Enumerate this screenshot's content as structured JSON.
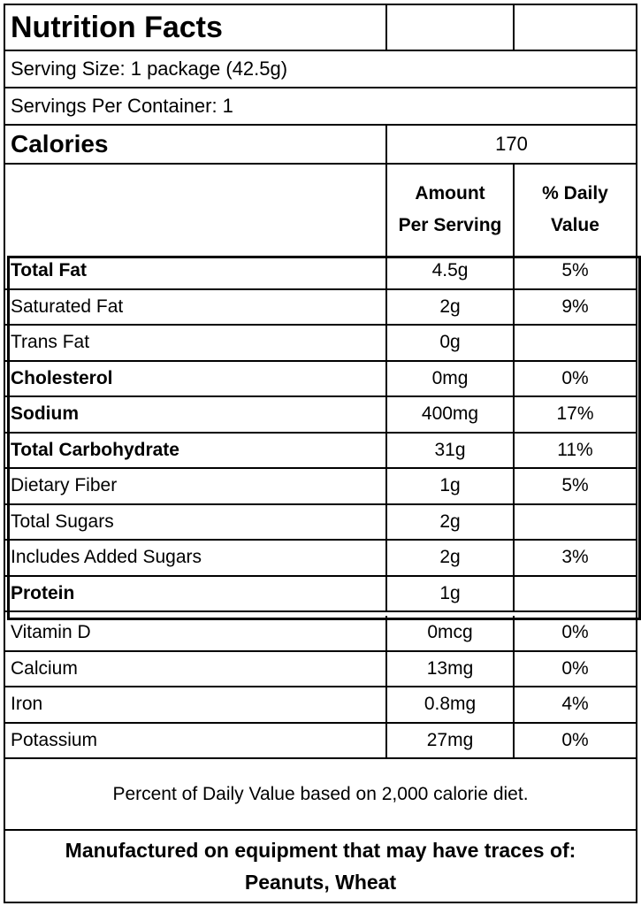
{
  "title": "Nutrition Facts",
  "serving_size": "Serving Size: 1 package (42.5g)",
  "servings_per_container": "Servings Per Container: 1",
  "calories": {
    "label": "Calories",
    "value": "170"
  },
  "columns": {
    "amount_line1": "Amount",
    "amount_line2": "Per Serving",
    "dv_line1": "% Daily",
    "dv_line2": "Value"
  },
  "nutrients": [
    {
      "name": "Total Fat",
      "amount": "4.5g",
      "dv": "5%",
      "bold": true
    },
    {
      "name": "Saturated Fat",
      "amount": "2g",
      "dv": "9%",
      "bold": false
    },
    {
      "name": "Trans Fat",
      "amount": "0g",
      "dv": "",
      "bold": false
    },
    {
      "name": "Cholesterol",
      "amount": "0mg",
      "dv": "0%",
      "bold": true
    },
    {
      "name": "Sodium",
      "amount": "400mg",
      "dv": "17%",
      "bold": true
    },
    {
      "name": "Total Carbohydrate",
      "amount": "31g",
      "dv": "11%",
      "bold": true
    },
    {
      "name": "Dietary Fiber",
      "amount": "1g",
      "dv": "5%",
      "bold": false
    },
    {
      "name": "Total Sugars",
      "amount": "2g",
      "dv": "",
      "bold": false
    },
    {
      "name": "Includes Added Sugars",
      "amount": "2g",
      "dv": "3%",
      "bold": false
    },
    {
      "name": "Protein",
      "amount": "1g",
      "dv": "",
      "bold": true
    }
  ],
  "vitamins": [
    {
      "name": "Vitamin D",
      "amount": "0mcg",
      "dv": "0%"
    },
    {
      "name": "Calcium",
      "amount": "13mg",
      "dv": "0%"
    },
    {
      "name": "Iron",
      "amount": "0.8mg",
      "dv": "4%"
    },
    {
      "name": "Potassium",
      "amount": "27mg",
      "dv": "0%"
    }
  ],
  "footnote": "Percent of Daily Value based on 2,000 calorie diet.",
  "allergen": {
    "line1": "Manufactured on equipment that may have traces of:",
    "line2": "Peanuts, Wheat"
  }
}
